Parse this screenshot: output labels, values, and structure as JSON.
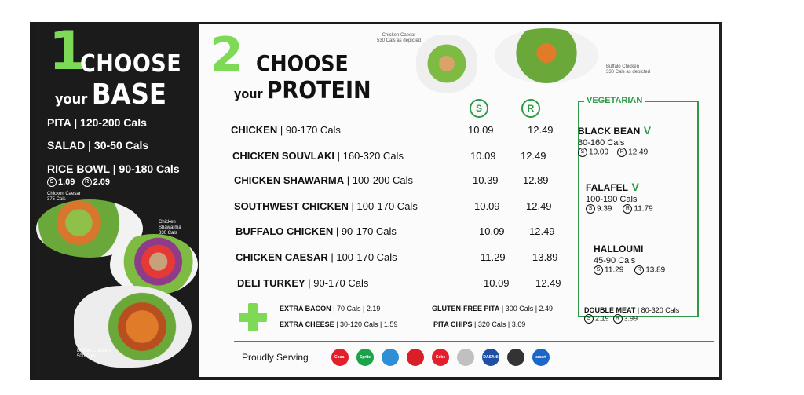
{
  "colors": {
    "green": "#7ed957",
    "dark_green": "#2e9a47",
    "red": "#e23b3b",
    "panel_dark": "#1b1b1b"
  },
  "base": {
    "step_number": "1",
    "title_line1": "CHOOSE",
    "title_your": "your",
    "title_word": "BASE",
    "items": [
      "PITA | 120-200 Cals",
      "SALAD | 30-50 Cals",
      "RICE BOWL | 90-180 Cals"
    ],
    "rice_bowl_price_s": "1.09",
    "rice_bowl_price_r": "2.09",
    "captions": {
      "caesar": "Chicken Caesar",
      "caesar_cals": "375 Cals",
      "shawarma": "Chicken Shawarma",
      "shawarma_cals": "330 Cals",
      "buffalo": "Buffalo Chicken",
      "buffalo_cals": "500 Cals"
    }
  },
  "protein": {
    "step_number": "2",
    "title_line1": "CHOOSE",
    "title_your": "your",
    "title_word": "PROTEIN",
    "size_small": "S",
    "size_regular": "R",
    "top_captions": {
      "caesar": "Chicken Caesar",
      "caesar_cals": "530 Cals as depicted",
      "buffalo": "Buffalo Chicken",
      "buffalo_cals": "330 Cals as depicted"
    },
    "items": [
      {
        "name": "CHICKEN",
        "cals": " | 90-170 Cals",
        "small": "10.09",
        "regular": "12.49"
      },
      {
        "name": "CHICKEN SOUVLAKI",
        "cals": " | 160-320 Cals",
        "small": "10.09",
        "regular": "12.49"
      },
      {
        "name": "CHICKEN SHAWARMA",
        "cals": " | 100-200 Cals",
        "small": "10.39",
        "regular": "12.89"
      },
      {
        "name": "SOUTHWEST CHICKEN",
        "cals": " | 100-170 Cals",
        "small": "10.09",
        "regular": "12.49"
      },
      {
        "name": "BUFFALO CHICKEN",
        "cals": " | 90-170 Cals",
        "small": "10.09",
        "regular": "12.49"
      },
      {
        "name": "CHICKEN CAESAR",
        "cals": " | 100-170 Cals",
        "small": "11.29",
        "regular": "13.89"
      },
      {
        "name": "DELI TURKEY",
        "cals": " | 90-170 Cals",
        "small": "10.09",
        "regular": "12.49"
      }
    ]
  },
  "vegetarian": {
    "heading": "VEGETARIAN",
    "mark": "V",
    "items": [
      {
        "name": "BLACK BEAN",
        "cals": "80-160 Cals",
        "small": "10.09",
        "regular": "12.49"
      },
      {
        "name": "FALAFEL",
        "cals": "100-190 Cals",
        "small": "9.39",
        "regular": "11.79"
      },
      {
        "name": "HALLOUMI",
        "cals": "45-90 Cals",
        "small": "11.29",
        "regular": "13.89"
      }
    ]
  },
  "extras": {
    "bacon_name": "EXTRA BACON",
    "bacon_info": " | 70 Cals |  2.19",
    "cheese_name": "EXTRA CHEESE",
    "cheese_info": " | 30-120 Cals | 1.59",
    "gf_pita_name": "GLUTEN-FREE PITA",
    "gf_pita_info": " | 300 Cals |  2.49",
    "pita_chips_name": "PITA CHIPS",
    "pita_chips_info": " | 320 Cals |  3.69",
    "double_meat_name": "DOUBLE MEAT",
    "double_meat_info": " | 80-320 Cals",
    "double_meat_small": "2.19",
    "double_meat_regular": "3.99"
  },
  "serving": {
    "label": "Proudly Serving",
    "brands": [
      "Coca-Cola",
      "Sprite",
      "",
      "",
      "Coke",
      "",
      "DASANI",
      "",
      "smart"
    ]
  }
}
